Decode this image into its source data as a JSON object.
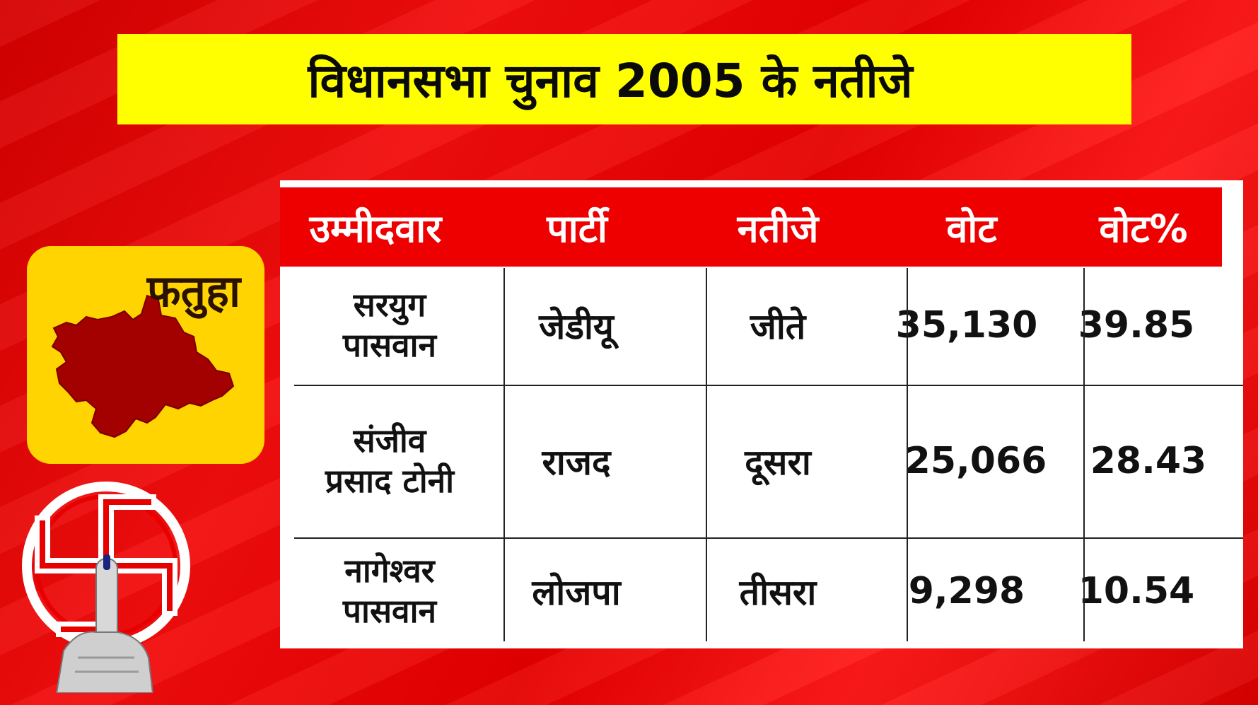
{
  "title": "विधानसभा चुनाव 2005 के नतीजे",
  "constituency": {
    "name": "फतुहा",
    "map_icon": "constituency-map",
    "map_color": "#a30000",
    "card_color": "#ffd400"
  },
  "table": {
    "headers": [
      "उम्मीदवार",
      "पार्टी",
      "नतीजे",
      "वोट",
      "वोट%"
    ],
    "rows": [
      {
        "candidate_line1": "सरयुग",
        "candidate_line2": "पासवान",
        "party": "जेडीयू",
        "result": "जीते",
        "votes": "35,130",
        "vote_pct": "39.85"
      },
      {
        "candidate_line1": "संजीव",
        "candidate_line2": "प्रसाद टोनी",
        "party": "राजद",
        "result": "दूसरा",
        "votes": "25,066",
        "vote_pct": "28.43"
      },
      {
        "candidate_line1": "नागेश्वर",
        "candidate_line2": "पासवान",
        "party": "लोजपा",
        "result": "तीसरा",
        "votes": "9,298",
        "vote_pct": "10.54"
      }
    ]
  },
  "decorations": {
    "voting_symbol_icon": "election-swastika-finger-icon"
  },
  "colors": {
    "background": "#e50000",
    "title_bar": "#ffff00",
    "header_row": "#ee0000",
    "table_bg": "#ffffff"
  }
}
